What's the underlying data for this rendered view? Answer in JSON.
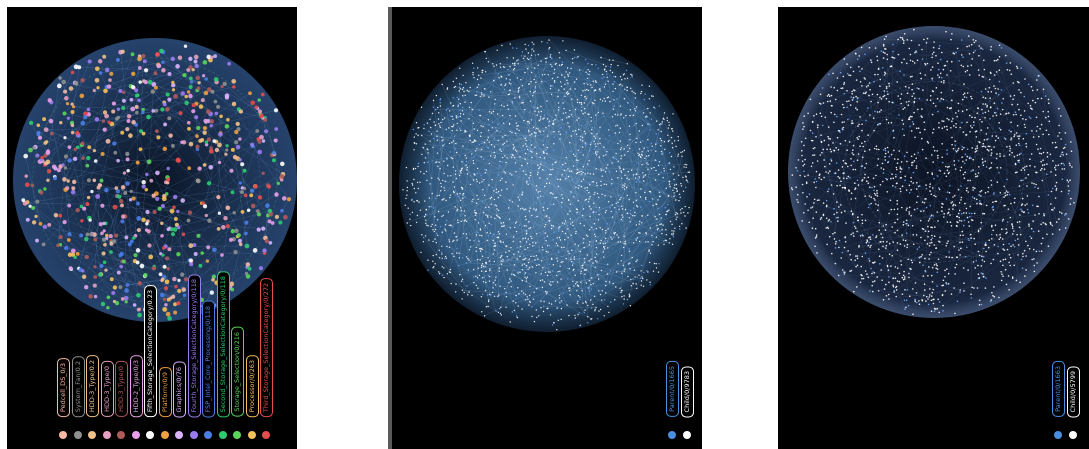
{
  "panels": [
    {
      "id": "panel-1",
      "style": "multicolor",
      "legend": [
        {
          "label": "Pedcell_DS_0/3",
          "color": "#f4b9a8"
        },
        {
          "label": "System_Fan/0.2",
          "color": "#8f8f8f"
        },
        {
          "label": "HDD-3_Type/0.2",
          "color": "#f0c28a"
        },
        {
          "label": "HDD-3_Type/0",
          "color": "#e8a0c0"
        },
        {
          "label": "HDD-3_Type/0",
          "color": "#b05a5a"
        },
        {
          "label": "HDD-2_Type/0/3",
          "color": "#e8a0e8"
        },
        {
          "label": "Fifth_Storage_SelectionCategory/0.23",
          "color": "#ffffff"
        },
        {
          "label": "Platform/0/9",
          "color": "#f0a040"
        },
        {
          "label": "Graphics/0/76",
          "color": "#d9b3ff"
        },
        {
          "label": "Fourth_Storage_SelectionCategory/0/118",
          "color": "#9b7cf0"
        },
        {
          "label": "FSP_Intel_Core_Processing/0/118",
          "color": "#4a7de8"
        },
        {
          "label": "Second_Storage_SelectionCategory/0/118",
          "color": "#2ecc71"
        },
        {
          "label": "Storage_Selection/0/216",
          "color": "#5ad65a"
        },
        {
          "label": "Processor/0/263",
          "color": "#f6c25a"
        },
        {
          "label": "Third_Storage_SelectionCategory/0/272",
          "color": "#e84c4c"
        }
      ]
    },
    {
      "id": "panel-2",
      "style": "blue-dense",
      "legend": [
        {
          "label": "Parent/0/1665",
          "color": "#4a90e2"
        },
        {
          "label": "Child/0/9783",
          "color": "#ffffff"
        }
      ]
    },
    {
      "id": "panel-3",
      "style": "blue-sparse",
      "legend": [
        {
          "label": "Parent/0/1663",
          "color": "#4a90e2"
        },
        {
          "label": "Child/0/5799",
          "color": "#ffffff"
        }
      ]
    }
  ]
}
